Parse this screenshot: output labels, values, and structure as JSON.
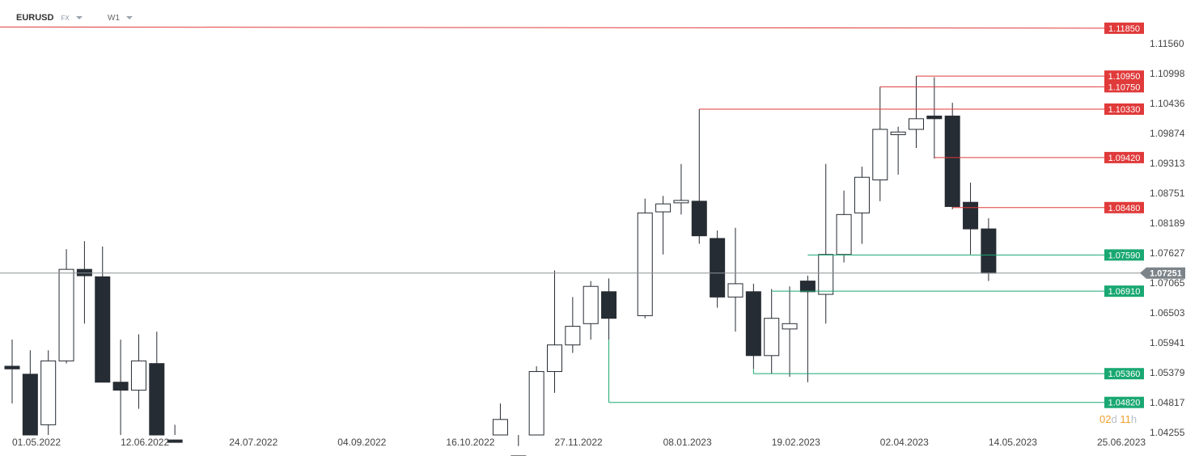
{
  "header": {
    "symbol": "EURUSD",
    "market": "FX",
    "timeframe": "W1"
  },
  "countdown": {
    "days": "02",
    "days_unit": "d",
    "hours": "11",
    "hours_unit": "h"
  },
  "colors": {
    "resistance": "#e03a3a",
    "support": "#1aa872",
    "bear_body": "#262c33",
    "bull_body": "#ffffff",
    "price_line": "#8c9196",
    "price_badge": "#7c8489"
  },
  "chart_data": {
    "type": "candlestick",
    "instrument": "EURUSD",
    "timeframe": "W1",
    "current_price": 1.07251,
    "current_price_label": "1.07251",
    "y_ticks": [
      "1.11560",
      "1.10998",
      "1.10436",
      "1.09874",
      "1.09313",
      "1.08751",
      "1.08189",
      "1.07627",
      "1.07065",
      "1.06503",
      "1.05941",
      "1.05379",
      "1.04817",
      "1.04255"
    ],
    "x_ticks": [
      "01.05.2022",
      "12.06.2022",
      "24.07.2022",
      "04.09.2022",
      "16.10.2022",
      "27.11.2022",
      "08.01.2023",
      "19.02.2023",
      "02.04.2023",
      "14.05.2023",
      "25.06.2023"
    ],
    "candles": [
      {
        "date": "2022-05-01",
        "o": 1.055,
        "h": 1.06,
        "l": 1.048,
        "c": 1.0545
      },
      {
        "date": "2022-05-08",
        "o": 1.0535,
        "h": 1.058,
        "l": 1.035,
        "c": 1.0385
      },
      {
        "date": "2022-05-15",
        "o": 1.044,
        "h": 1.058,
        "l": 1.039,
        "c": 1.056
      },
      {
        "date": "2022-05-22",
        "o": 1.056,
        "h": 1.077,
        "l": 1.0555,
        "c": 1.0732
      },
      {
        "date": "2022-05-29",
        "o": 1.0732,
        "h": 1.0785,
        "l": 1.063,
        "c": 1.072
      },
      {
        "date": "2022-06-05",
        "o": 1.0718,
        "h": 1.0775,
        "l": 1.052,
        "c": 1.052
      },
      {
        "date": "2022-06-12",
        "o": 1.052,
        "h": 1.06,
        "l": 1.036,
        "c": 1.0505
      },
      {
        "date": "2022-06-19",
        "o": 1.0505,
        "h": 1.061,
        "l": 1.047,
        "c": 1.056
      },
      {
        "date": "2022-06-26",
        "o": 1.0555,
        "h": 1.0615,
        "l": 1.035,
        "c": 1.041
      },
      {
        "date": "2022-07-03",
        "o": 1.041,
        "h": 1.044,
        "l": 1.0,
        "c": 1.018
      },
      {
        "date": "2022-11-06",
        "o": 1.031,
        "h": 1.048,
        "l": 1.026,
        "c": 1.045
      },
      {
        "date": "2022-11-13",
        "o": 1.035,
        "h": 1.04,
        "l": 1.025,
        "c": 1.038
      },
      {
        "date": "2022-11-20",
        "o": 1.04,
        "h": 1.055,
        "l": 1.039,
        "c": 1.054
      },
      {
        "date": "2022-11-27",
        "o": 1.054,
        "h": 1.073,
        "l": 1.05,
        "c": 1.059
      },
      {
        "date": "2022-12-04",
        "o": 1.059,
        "h": 1.068,
        "l": 1.0575,
        "c": 1.0625
      },
      {
        "date": "2022-12-11",
        "o": 1.063,
        "h": 1.071,
        "l": 1.06,
        "c": 1.07
      },
      {
        "date": "2022-12-18",
        "o": 1.069,
        "h": 1.0715,
        "l": 1.06,
        "c": 1.064
      },
      {
        "date": "2023-01-01",
        "o": 1.0645,
        "h": 1.0865,
        "l": 1.064,
        "c": 1.0838
      },
      {
        "date": "2023-01-08",
        "o": 1.084,
        "h": 1.087,
        "l": 1.076,
        "c": 1.0855
      },
      {
        "date": "2023-01-15",
        "o": 1.086,
        "h": 1.093,
        "l": 1.0835,
        "c": 1.086
      },
      {
        "date": "2023-01-22",
        "o": 1.086,
        "h": 1.1033,
        "l": 1.078,
        "c": 1.0795
      },
      {
        "date": "2023-01-29",
        "o": 1.079,
        "h": 1.0805,
        "l": 1.066,
        "c": 1.068
      },
      {
        "date": "2023-02-05",
        "o": 1.068,
        "h": 1.081,
        "l": 1.0615,
        "c": 1.0705
      },
      {
        "date": "2023-02-12",
        "o": 1.069,
        "h": 1.0705,
        "l": 1.0545,
        "c": 1.057
      },
      {
        "date": "2023-02-19",
        "o": 1.057,
        "h": 1.0695,
        "l": 1.0536,
        "c": 1.064
      },
      {
        "date": "2023-02-26",
        "o": 1.062,
        "h": 1.07,
        "l": 1.053,
        "c": 1.063
      },
      {
        "date": "2023-03-05",
        "o": 1.071,
        "h": 1.072,
        "l": 1.052,
        "c": 1.069
      },
      {
        "date": "2023-03-12",
        "o": 1.0685,
        "h": 1.093,
        "l": 1.063,
        "c": 1.076
      },
      {
        "date": "2023-03-19",
        "o": 1.076,
        "h": 1.088,
        "l": 1.0745,
        "c": 1.0835
      },
      {
        "date": "2023-03-26",
        "o": 1.0838,
        "h": 1.0925,
        "l": 1.078,
        "c": 1.0905
      },
      {
        "date": "2023-04-02",
        "o": 1.09,
        "h": 1.1075,
        "l": 1.086,
        "c": 1.0995
      },
      {
        "date": "2023-04-09",
        "o": 1.0985,
        "h": 1.1,
        "l": 1.091,
        "c": 1.099
      },
      {
        "date": "2023-04-16",
        "o": 1.0995,
        "h": 1.1095,
        "l": 1.096,
        "c": 1.1015
      },
      {
        "date": "2023-04-23",
        "o": 1.102,
        "h": 1.1093,
        "l": 1.094,
        "c": 1.1015
      },
      {
        "date": "2023-04-30",
        "o": 1.102,
        "h": 1.1045,
        "l": 1.0845,
        "c": 1.085
      },
      {
        "date": "2023-05-07",
        "o": 1.0858,
        "h": 1.0895,
        "l": 1.076,
        "c": 1.0808
      },
      {
        "date": "2023-05-14",
        "o": 1.0808,
        "h": 1.0828,
        "l": 1.071,
        "c": 1.0725
      }
    ],
    "levels": [
      {
        "value": 1.1185,
        "label": "1.11850",
        "kind": "resistance",
        "from": null
      },
      {
        "value": 1.1095,
        "label": "1.10950",
        "kind": "resistance",
        "from": "2023-04-16"
      },
      {
        "value": 1.1075,
        "label": "1.10750",
        "kind": "resistance",
        "from": "2023-04-02"
      },
      {
        "value": 1.1033,
        "label": "1.10330",
        "kind": "resistance",
        "from": "2023-01-22"
      },
      {
        "value": 1.0942,
        "label": "1.09420",
        "kind": "resistance",
        "from": "2023-04-23"
      },
      {
        "value": 1.0848,
        "label": "1.08480",
        "kind": "resistance",
        "from": "2023-04-30"
      },
      {
        "value": 1.0759,
        "label": "1.07590",
        "kind": "support",
        "from": "2023-03-05"
      },
      {
        "value": 1.0691,
        "label": "1.06910",
        "kind": "support",
        "from": "2023-02-19"
      },
      {
        "value": 1.0536,
        "label": "1.05360",
        "kind": "support",
        "from": "2023-02-12"
      },
      {
        "value": 1.0482,
        "label": "1.04820",
        "kind": "support",
        "from": "2022-12-18"
      }
    ]
  }
}
